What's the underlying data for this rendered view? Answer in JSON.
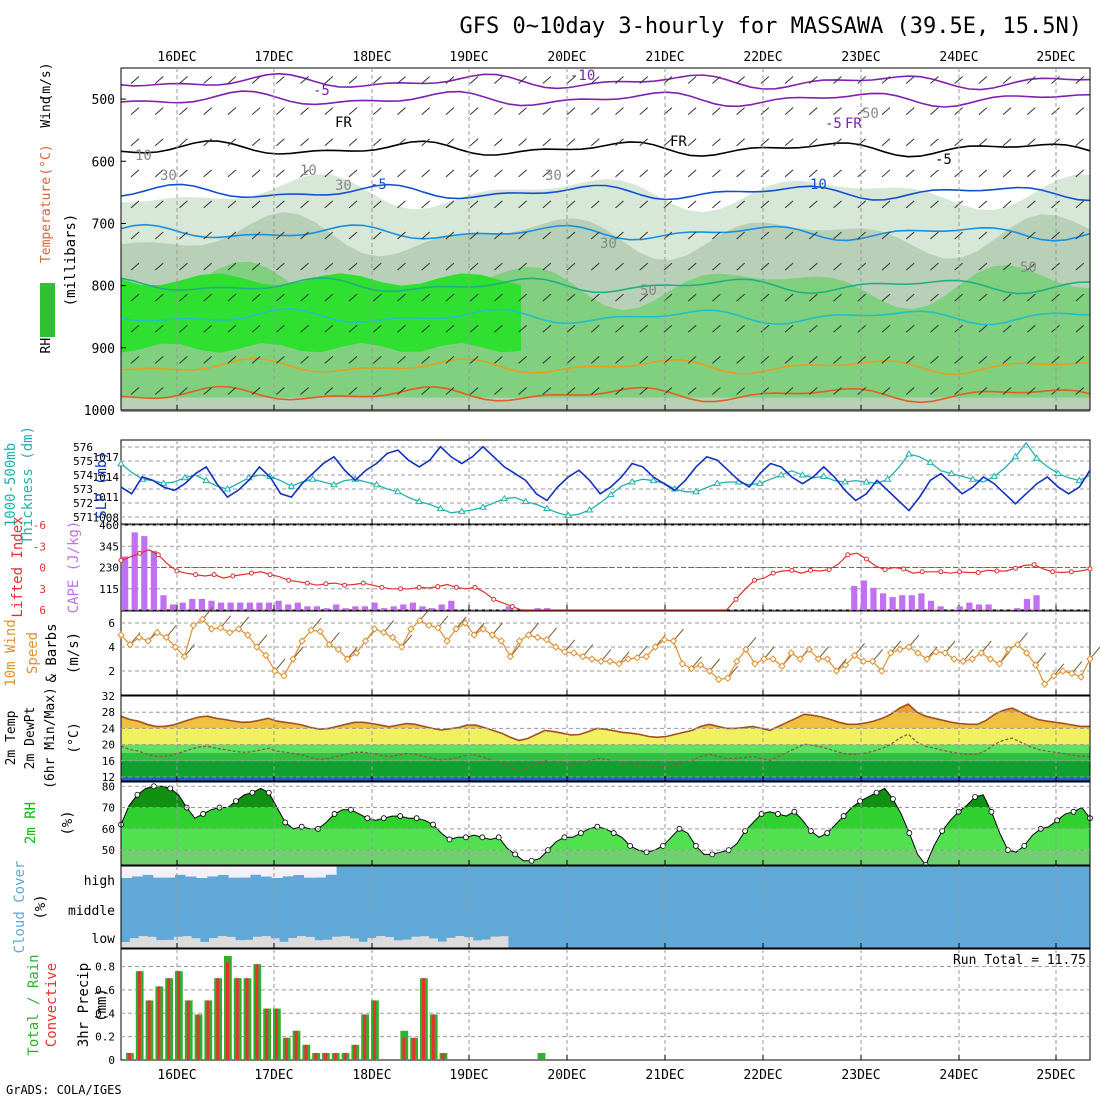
{
  "title": "GFS 0~10day 3-hourly for MASSAWA (39.5E, 15.5N)",
  "footer": "GrADS: COLA/IGES",
  "dates": [
    "16DEC",
    "17DEC",
    "18DEC",
    "19DEC",
    "20DEC",
    "21DEC",
    "22DEC",
    "23DEC",
    "24DEC",
    "25DEC"
  ],
  "colors": {
    "axis": "#000000",
    "grid": "#999999",
    "cape": "#c070f0",
    "lifted": "#e03030",
    "slp": "#1030c0",
    "thick": "#20b0b0",
    "wind": "#e09030",
    "temp": "#e09030",
    "tempdark": "#a05020",
    "rh": "#00c000",
    "cloud": "#5fa8d8",
    "cloudlow": "#dcdcdc",
    "rain": "#e83030",
    "total": "#30b030"
  },
  "chart_data": [
    {
      "type": "heatmap",
      "name": "upper-air-cross-section",
      "ylabel_parts": [
        "RH (%)",
        "Temperature",
        "(°C)",
        "Wind",
        "(m/s)"
      ],
      "ylabel2": "(millibars)",
      "yticks": [
        500,
        600,
        700,
        800,
        900,
        1000
      ],
      "ylim": [
        450,
        1000
      ],
      "contour_labels": [
        "-10",
        "-5",
        "-5",
        "FR",
        "FR",
        "FR",
        "-5",
        "-5",
        "10",
        "10",
        "10",
        "30",
        "30",
        "30",
        "30",
        "50",
        "50",
        "50"
      ]
    },
    {
      "type": "line",
      "name": "thickness-slp",
      "ylabel_left": [
        "1000-500mb",
        "Thickness (dm)"
      ],
      "ylabel_right": "SLP (mb)",
      "thick_ticks": [
        "576",
        "575",
        "574",
        "573",
        "572",
        "571"
      ],
      "slp_ticks": [
        "1017",
        "1014",
        "1011",
        "1008"
      ],
      "thick_range": [
        570.5,
        576.5
      ],
      "slp_range": [
        1007,
        1019.5
      ],
      "thickness": [
        574.8,
        574.2,
        573.7,
        573.6,
        573.4,
        573.5,
        573.8,
        574.0,
        573.6,
        573.2,
        573.0,
        573.4,
        573.8,
        574.0,
        573.9,
        573.6,
        573.2,
        573.5,
        573.7,
        573.5,
        573.3,
        573.6,
        573.7,
        573.5,
        573.3,
        573.0,
        572.8,
        572.4,
        572.1,
        571.9,
        571.6,
        571.3,
        571.4,
        571.5,
        571.7,
        572.0,
        572.3,
        572.4,
        572.1,
        571.9,
        571.6,
        571.3,
        571.1,
        571.2,
        571.5,
        572.0,
        572.6,
        573.2,
        573.5,
        573.7,
        573.6,
        573.4,
        573.0,
        572.8,
        572.8,
        573.1,
        573.4,
        573.5,
        573.5,
        573.3,
        573.4,
        573.7,
        574.0,
        574.3,
        574.0,
        573.8,
        573.9,
        573.6,
        573.5,
        573.6,
        573.5,
        573.4,
        573.7,
        574.5,
        575.5,
        575.3,
        574.9,
        574.3,
        574.1,
        573.9,
        573.7,
        573.5,
        573.9,
        574.5,
        575.3,
        576.3,
        575.2,
        574.6,
        574.1,
        573.8,
        573.6,
        574.0
      ],
      "slp": [
        1012.5,
        1011.5,
        1014.0,
        1013.5,
        1012.5,
        1012.0,
        1013.0,
        1014.5,
        1015.5,
        1013.0,
        1011.0,
        1012.0,
        1013.5,
        1015.5,
        1014.0,
        1011.5,
        1011.0,
        1013.0,
        1014.5,
        1016.0,
        1017.0,
        1015.0,
        1013.5,
        1015.0,
        1016.0,
        1017.5,
        1018.0,
        1016.5,
        1015.5,
        1016.5,
        1018.5,
        1017.0,
        1016.0,
        1017.0,
        1018.5,
        1017.0,
        1015.5,
        1014.5,
        1013.5,
        1011.5,
        1010.5,
        1012.5,
        1014.0,
        1015.0,
        1013.5,
        1011.5,
        1012.5,
        1014.0,
        1016.0,
        1015.5,
        1014.0,
        1013.0,
        1012.0,
        1013.5,
        1015.5,
        1017.0,
        1016.5,
        1015.0,
        1013.5,
        1012.5,
        1014.5,
        1016.0,
        1015.5,
        1014.0,
        1013.0,
        1014.0,
        1015.5,
        1014.0,
        1012.0,
        1010.5,
        1011.5,
        1013.5,
        1012.0,
        1010.5,
        1009.0,
        1011.0,
        1013.5,
        1014.5,
        1013.0,
        1011.5,
        1012.5,
        1014.0,
        1013.0,
        1011.5,
        1010.0,
        1011.5,
        1013.0,
        1014.0,
        1012.5,
        1011.5,
        1012.5,
        1015.0
      ]
    },
    {
      "type": "bar",
      "name": "cape-lifted-index",
      "ylabel_left": "Lifted Index",
      "ylabel_right": "CAPE (J/kg)",
      "li_ticks": [
        "-6",
        "-3",
        "0",
        "3",
        "6"
      ],
      "cape_ticks": [
        "460",
        "345",
        "230",
        "115"
      ],
      "li_range": [
        6,
        -6
      ],
      "cape_range": [
        0,
        460
      ],
      "cape": [
        290,
        420,
        400,
        320,
        80,
        30,
        40,
        60,
        60,
        50,
        40,
        40,
        40,
        40,
        40,
        40,
        50,
        30,
        40,
        20,
        20,
        10,
        30,
        10,
        20,
        20,
        40,
        10,
        20,
        30,
        40,
        20,
        10,
        30,
        50,
        0,
        0,
        0,
        0,
        0,
        20,
        0,
        0,
        10,
        10,
        0,
        0,
        0,
        0,
        0,
        0,
        0,
        0,
        0,
        0,
        0,
        0,
        0,
        0,
        0,
        0,
        0,
        0,
        0,
        0,
        0,
        0,
        0,
        0,
        0,
        0,
        0,
        0,
        0,
        0,
        0,
        130,
        160,
        120,
        90,
        70,
        80,
        80,
        90,
        50,
        20,
        0,
        20,
        40,
        30,
        30,
        0,
        0,
        10,
        60,
        80,
        0,
        0,
        0,
        0,
        0
      ],
      "lifted": [
        -1.0,
        -1.5,
        -2.0,
        -2.5,
        -1.8,
        -0.5,
        0.5,
        0.8,
        1.0,
        1.2,
        1.0,
        1.5,
        1.2,
        1.0,
        0.8,
        0.6,
        1.0,
        1.3,
        1.8,
        2.0,
        2.2,
        2.5,
        2.3,
        2.2,
        2.5,
        2.4,
        2.2,
        2.5,
        2.8,
        3.0,
        3.0,
        3.0,
        2.8,
        2.9,
        2.7,
        2.4,
        2.8,
        3.0,
        2.8,
        3.5,
        4.5,
        5.0,
        5.5,
        6.0,
        6.0,
        6.0,
        6.0,
        6.0,
        6.0,
        6.0,
        6.0,
        6.0,
        6.0,
        6.0,
        6.0,
        6.0,
        6.0,
        6.0,
        6.0,
        6.0,
        6.0,
        6.0,
        6.0,
        6.0,
        6.0,
        6.0,
        4.5,
        3.0,
        1.8,
        1.5,
        0.8,
        0.5,
        0.4,
        0.8,
        0.4,
        0.5,
        0.3,
        -0.5,
        -1.8,
        -2.0,
        -1.2,
        -0.2,
        0.3,
        0.0,
        0.2,
        0.8,
        0.6,
        0.6,
        0.6,
        0.8,
        0.6,
        0.7,
        0.7,
        0.4,
        0.5,
        0.5,
        0.1,
        -0.3,
        -0.4,
        0.2,
        0.6,
        0.7,
        0.6,
        0.5,
        0.2
      ]
    },
    {
      "type": "line",
      "name": "10m-wind",
      "ylabel": [
        "10m Wind",
        "Speed",
        "& Barbs"
      ],
      "yunit": "(m/s)",
      "yticks": [
        "2",
        "4",
        "6"
      ],
      "ylim": [
        0,
        7
      ],
      "speed": [
        5.0,
        4.2,
        4.8,
        4.5,
        5.2,
        4.8,
        4.0,
        3.2,
        5.8,
        6.3,
        5.5,
        5.6,
        5.2,
        5.5,
        5.0,
        4.0,
        3.3,
        2.0,
        1.6,
        3.0,
        4.5,
        5.4,
        5.3,
        4.2,
        3.8,
        3.0,
        3.5,
        4.5,
        5.5,
        5.2,
        4.8,
        4.0,
        5.5,
        6.2,
        5.8,
        5.6,
        4.5,
        5.5,
        6.0,
        5.0,
        5.5,
        5.0,
        4.5,
        3.2,
        4.5,
        5.0,
        4.8,
        4.6,
        4.0,
        3.6,
        3.5,
        3.2,
        3.0,
        2.8,
        2.8,
        2.6,
        3.0,
        3.1,
        3.2,
        4.0,
        4.6,
        4.5,
        2.6,
        2.2,
        2.5,
        2.0,
        1.3,
        1.4,
        2.8,
        3.8,
        2.6,
        3.0,
        3.0,
        2.4,
        3.5,
        3.0,
        3.8,
        3.0,
        3.0,
        2.0,
        2.5,
        3.3,
        2.8,
        2.8,
        2.0,
        3.5,
        3.8,
        4.0,
        3.5,
        3.0,
        3.6,
        3.5,
        3.0,
        2.8,
        3.0,
        3.5,
        3.0,
        2.6,
        3.8,
        4.2,
        3.5,
        2.5,
        0.9,
        1.6,
        2.0,
        1.8,
        1.5,
        3.0
      ]
    },
    {
      "type": "area",
      "name": "2m-temperature",
      "ylabel": [
        "2m Temp",
        "2m DewPt",
        "(6hr Min/Max)"
      ],
      "yunit": "(°C)",
      "yticks": [
        "12",
        "16",
        "20",
        "24",
        "28",
        "32"
      ],
      "ylim": [
        11,
        32
      ],
      "temp": [
        27.0,
        26.2,
        25.8,
        25.0,
        24.5,
        24.5,
        24.8,
        25.5,
        26.2,
        26.8,
        27.0,
        26.5,
        26.2,
        25.8,
        25.5,
        25.6,
        26.0,
        26.5,
        25.8,
        25.5,
        25.2,
        24.8,
        24.2,
        23.8,
        24.0,
        24.5,
        25.0,
        25.5,
        25.5,
        25.2,
        24.8,
        24.4,
        24.8,
        25.2,
        25.0,
        24.5,
        24.0,
        23.6,
        23.9,
        24.2,
        24.8,
        24.8,
        24.2,
        23.5,
        22.8,
        21.8,
        21.0,
        21.5,
        22.5,
        23.5,
        23.2,
        22.8,
        22.4,
        22.5,
        23.2,
        24.0,
        23.8,
        23.4,
        23.0,
        22.8,
        22.5,
        22.0,
        21.8,
        22.0,
        22.5,
        23.0,
        23.5,
        24.5,
        25.0,
        24.5,
        24.0,
        24.0,
        24.2,
        24.5,
        24.0,
        23.5,
        24.5,
        25.5,
        26.5,
        27.5,
        27.2,
        26.8,
        26.2,
        25.5,
        25.0,
        25.0,
        25.3,
        25.8,
        26.5,
        27.5,
        29.0,
        30.0,
        28.0,
        27.0,
        26.5,
        26.0,
        25.5,
        25.2,
        25.0,
        25.0,
        26.0,
        27.5,
        28.5,
        29.0,
        28.0,
        27.0,
        26.2,
        25.8,
        25.5,
        25.2,
        24.8,
        24.5,
        24.5
      ]
    },
    {
      "type": "area",
      "name": "2m-rh",
      "ylabel": "2m RH",
      "yunit": "(%)",
      "yticks": [
        "50",
        "60",
        "70",
        "80"
      ],
      "ylim": [
        43,
        82
      ],
      "rh": [
        62,
        71,
        76,
        79,
        80,
        80,
        79,
        76,
        70,
        65,
        67,
        69,
        70,
        70,
        73,
        76,
        77,
        79,
        77,
        70,
        63,
        60,
        61,
        60,
        60,
        63,
        67,
        69,
        69,
        67,
        65,
        64,
        65,
        66,
        66,
        65,
        65,
        64,
        62,
        58,
        55,
        56,
        56,
        57,
        56,
        55,
        56,
        51,
        48,
        45,
        45,
        46,
        50,
        54,
        56,
        56,
        58,
        60,
        61,
        60,
        58,
        56,
        52,
        50,
        49,
        50,
        52,
        56,
        60,
        58,
        52,
        48,
        48,
        49,
        50,
        53,
        59,
        63,
        67,
        68,
        67,
        66,
        68,
        64,
        59,
        56,
        58,
        62,
        66,
        70,
        73,
        75,
        77,
        79,
        74,
        67,
        58,
        48,
        43,
        52,
        59,
        64,
        68,
        71,
        75,
        76,
        68,
        58,
        50,
        49,
        52,
        57,
        60,
        61,
        64,
        67,
        68,
        70,
        65
      ]
    },
    {
      "type": "area",
      "name": "cloud-cover",
      "ylabel": [
        "Cloud Cover",
        "(%)"
      ],
      "levels": [
        "high",
        "middle",
        "low"
      ]
    },
    {
      "type": "bar",
      "name": "3hr-precip",
      "ylabel_left": [
        "Total / Rain",
        "Convective"
      ],
      "ylabel": [
        "3hr Precip",
        "(mm)"
      ],
      "run_total": "Run Total = 11.75",
      "yticks": [
        "0",
        "0.2",
        "0.4",
        "0.6",
        "0.8"
      ],
      "ylim": [
        0,
        0.95
      ],
      "total": [
        0.06,
        0.76,
        0.51,
        0.63,
        0.7,
        0.76,
        0.51,
        0.39,
        0.51,
        0.7,
        0.89,
        0.7,
        0.7,
        0.82,
        0.44,
        0.44,
        0.19,
        0.25,
        0.13,
        0.06,
        0.06,
        0.06,
        0.06,
        0.13,
        0.39,
        0.51,
        0.0,
        0.0,
        0.25,
        0.19,
        0.7,
        0.39,
        0.06,
        0.0,
        0.0,
        0.0,
        0.0,
        0.0,
        0.0,
        0.0,
        0.0,
        0.0,
        0.06
      ],
      "conv": [
        0.06,
        0.76,
        0.51,
        0.63,
        0.7,
        0.76,
        0.51,
        0.39,
        0.51,
        0.7,
        0.84,
        0.7,
        0.7,
        0.82,
        0.44,
        0.44,
        0.19,
        0.25,
        0.13,
        0.06,
        0.06,
        0.06,
        0.06,
        0.13,
        0.39,
        0.51,
        0.0,
        0.0,
        0.19,
        0.19,
        0.7,
        0.39,
        0.06,
        0.0,
        0.0,
        0.0,
        0.0,
        0.0,
        0.0,
        0.0,
        0.0,
        0.0,
        0.0
      ]
    }
  ]
}
